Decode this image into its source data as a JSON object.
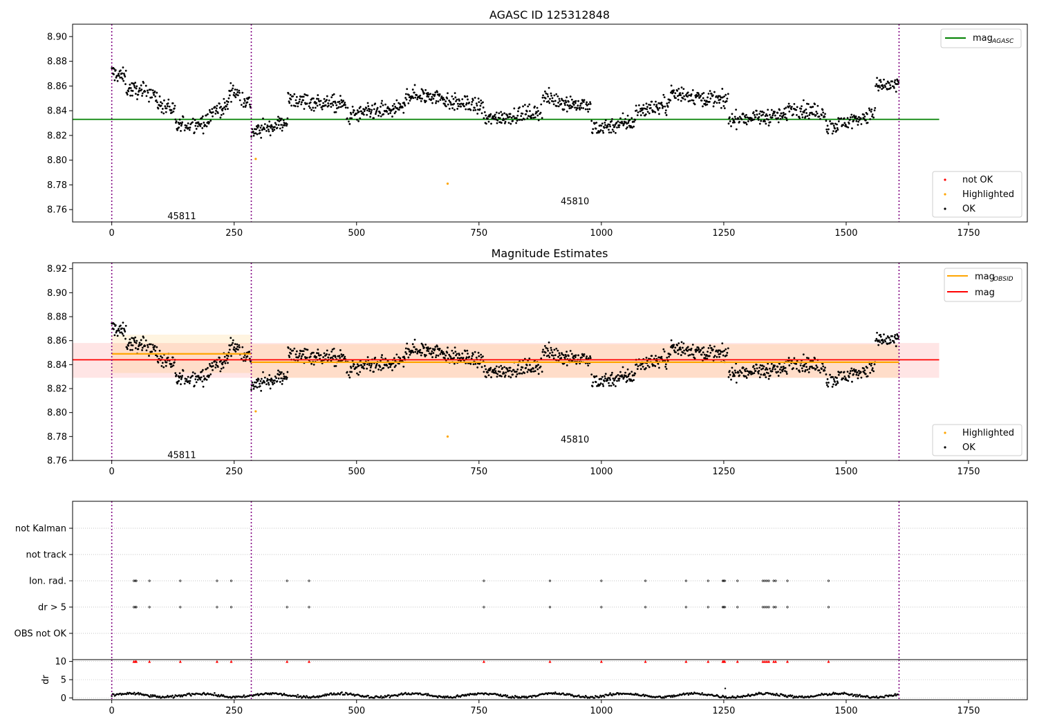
{
  "chart_data": [
    {
      "type": "scatter",
      "title": "AGASC ID 125312848",
      "xlim": [
        -80,
        1870
      ],
      "ylim": [
        8.75,
        8.91
      ],
      "xticks": [
        "0",
        "250",
        "500",
        "750",
        "1000",
        "1250",
        "1500",
        "1750"
      ],
      "xtick_values": [
        0,
        250,
        500,
        750,
        1000,
        1250,
        1500,
        1750
      ],
      "yticks": [
        "8.76",
        "8.78",
        "8.80",
        "8.82",
        "8.84",
        "8.86",
        "8.88",
        "8.90"
      ],
      "ytick_values": [
        8.76,
        8.78,
        8.8,
        8.82,
        8.84,
        8.86,
        8.88,
        8.9
      ],
      "grid": false,
      "obsid_boundaries": [
        0,
        285,
        1608
      ],
      "obsid_labels": [
        {
          "text": "45811",
          "x": 143,
          "y": 8.755
        },
        {
          "text": "45810",
          "x": 946,
          "y": 8.767
        }
      ],
      "reference_lines": [
        {
          "name": "mag",
          "subscript": "AGASC",
          "value": 8.833,
          "x_range": [
            -80,
            1690
          ],
          "color": "#008000"
        }
      ],
      "highlighted_points": [
        {
          "x": 294,
          "y": 8.801
        },
        {
          "x": 686,
          "y": 8.781
        }
      ],
      "series": [
        {
          "name": "not OK",
          "color": "#ff0000"
        },
        {
          "name": "Highlighted",
          "color": "#ffa500"
        },
        {
          "name": "OK",
          "color": "#000000"
        }
      ],
      "ok_points_approx": [
        {
          "x_range": [
            0,
            30
          ],
          "y_center": 8.871
        },
        {
          "x_range": [
            30,
            90
          ],
          "y_center": 8.858
        },
        {
          "x_range": [
            90,
            130
          ],
          "y_center": 8.847
        },
        {
          "x_range": [
            130,
            200
          ],
          "y_center": 8.827
        },
        {
          "x_range": [
            200,
            240
          ],
          "y_center": 8.838
        },
        {
          "x_range": [
            240,
            285
          ],
          "y_center": 8.858
        },
        {
          "x_range": [
            285,
            360
          ],
          "y_center": 8.822
        },
        {
          "x_range": [
            360,
            480
          ],
          "y_center": 8.849
        },
        {
          "x_range": [
            480,
            600
          ],
          "y_center": 8.836
        },
        {
          "x_range": [
            600,
            680
          ],
          "y_center": 8.853
        },
        {
          "x_range": [
            680,
            760
          ],
          "y_center": 8.848
        },
        {
          "x_range": [
            760,
            880
          ],
          "y_center": 8.833
        },
        {
          "x_range": [
            880,
            980
          ],
          "y_center": 8.851
        },
        {
          "x_range": [
            980,
            1070
          ],
          "y_center": 8.826
        },
        {
          "x_range": [
            1070,
            1140
          ],
          "y_center": 8.84
        },
        {
          "x_range": [
            1140,
            1260
          ],
          "y_center": 8.855
        },
        {
          "x_range": [
            1260,
            1380
          ],
          "y_center": 8.833
        },
        {
          "x_range": [
            1380,
            1460
          ],
          "y_center": 8.843
        },
        {
          "x_range": [
            1460,
            1560
          ],
          "y_center": 8.826
        },
        {
          "x_range": [
            1560,
            1608
          ],
          "y_center": 8.86
        }
      ]
    },
    {
      "type": "scatter",
      "title": "Magnitude Estimates",
      "xlim": [
        -80,
        1870
      ],
      "ylim": [
        8.76,
        8.925
      ],
      "xticks": [
        "0",
        "250",
        "500",
        "750",
        "1000",
        "1250",
        "1500",
        "1750"
      ],
      "xtick_values": [
        0,
        250,
        500,
        750,
        1000,
        1250,
        1500,
        1750
      ],
      "yticks": [
        "8.76",
        "8.78",
        "8.80",
        "8.82",
        "8.84",
        "8.86",
        "8.88",
        "8.90",
        "8.92"
      ],
      "ytick_values": [
        8.76,
        8.78,
        8.8,
        8.82,
        8.84,
        8.86,
        8.88,
        8.9,
        8.92
      ],
      "grid": false,
      "obsid_boundaries": [
        0,
        285,
        1608
      ],
      "obsid_labels": [
        {
          "text": "45811",
          "x": 143,
          "y": 8.765
        },
        {
          "text": "45810",
          "x": 946,
          "y": 8.778
        }
      ],
      "reference_lines": [
        {
          "name": "mag",
          "subscript": "OBSID",
          "color": "#ffa500",
          "segments": [
            {
              "x_range": [
                0,
                285
              ],
              "value": 8.849,
              "band": [
                8.833,
                8.865
              ]
            },
            {
              "x_range": [
                285,
                1608
              ],
              "value": 8.842,
              "band": [
                8.829,
                8.857
              ]
            }
          ]
        },
        {
          "name": "mag",
          "subscript": "",
          "color": "#ff0000",
          "value": 8.844,
          "x_range": [
            -80,
            1690
          ],
          "band": [
            8.829,
            8.858
          ]
        }
      ],
      "highlighted_points": [
        {
          "x": 294,
          "y": 8.801
        },
        {
          "x": 686,
          "y": 8.78
        }
      ],
      "series": [
        {
          "name": "Highlighted",
          "color": "#ffa500"
        },
        {
          "name": "OK",
          "color": "#000000"
        }
      ]
    },
    {
      "type": "scatter",
      "title": "",
      "xlim": [
        -80,
        1870
      ],
      "xticks": [
        "0",
        "250",
        "500",
        "750",
        "1000",
        "1250",
        "1500",
        "1750"
      ],
      "xtick_values": [
        0,
        250,
        500,
        750,
        1000,
        1250,
        1500,
        1750
      ],
      "flag_rows": [
        "not Kalman",
        "not track",
        "Ion. rad.",
        "dr > 5",
        "OBS not OK"
      ],
      "flag_points": {
        "Ion. rad.": [
          45,
          48,
          50,
          77,
          140,
          215,
          244,
          358,
          403,
          760,
          895,
          1000,
          1090,
          1173,
          1218,
          1248,
          1250,
          1252,
          1278,
          1330,
          1334,
          1338,
          1342,
          1352,
          1356,
          1380,
          1464
        ],
        "dr > 5": [
          45,
          48,
          50,
          77,
          140,
          215,
          244,
          358,
          403,
          760,
          895,
          1000,
          1090,
          1173,
          1218,
          1248,
          1250,
          1252,
          1278,
          1330,
          1334,
          1338,
          1342,
          1352,
          1356,
          1380,
          1464
        ]
      },
      "dr": {
        "ylabel": "dr",
        "yticks": [
          "0",
          "5",
          "10"
        ],
        "ytick_values": [
          0,
          5,
          10
        ],
        "ylim": [
          -0.5,
          10.5
        ],
        "clipped_markers_at_10": [
          45,
          48,
          50,
          77,
          140,
          215,
          244,
          358,
          403,
          760,
          895,
          1000,
          1090,
          1173,
          1218,
          1248,
          1250,
          1252,
          1278,
          1330,
          1334,
          1338,
          1342,
          1352,
          1356,
          1380,
          1464
        ],
        "typical_range": [
          0,
          2
        ],
        "outliers": [
          {
            "x": 1253,
            "y": 2.6
          }
        ]
      },
      "obsid_boundaries": [
        0,
        285,
        1608
      ]
    }
  ]
}
